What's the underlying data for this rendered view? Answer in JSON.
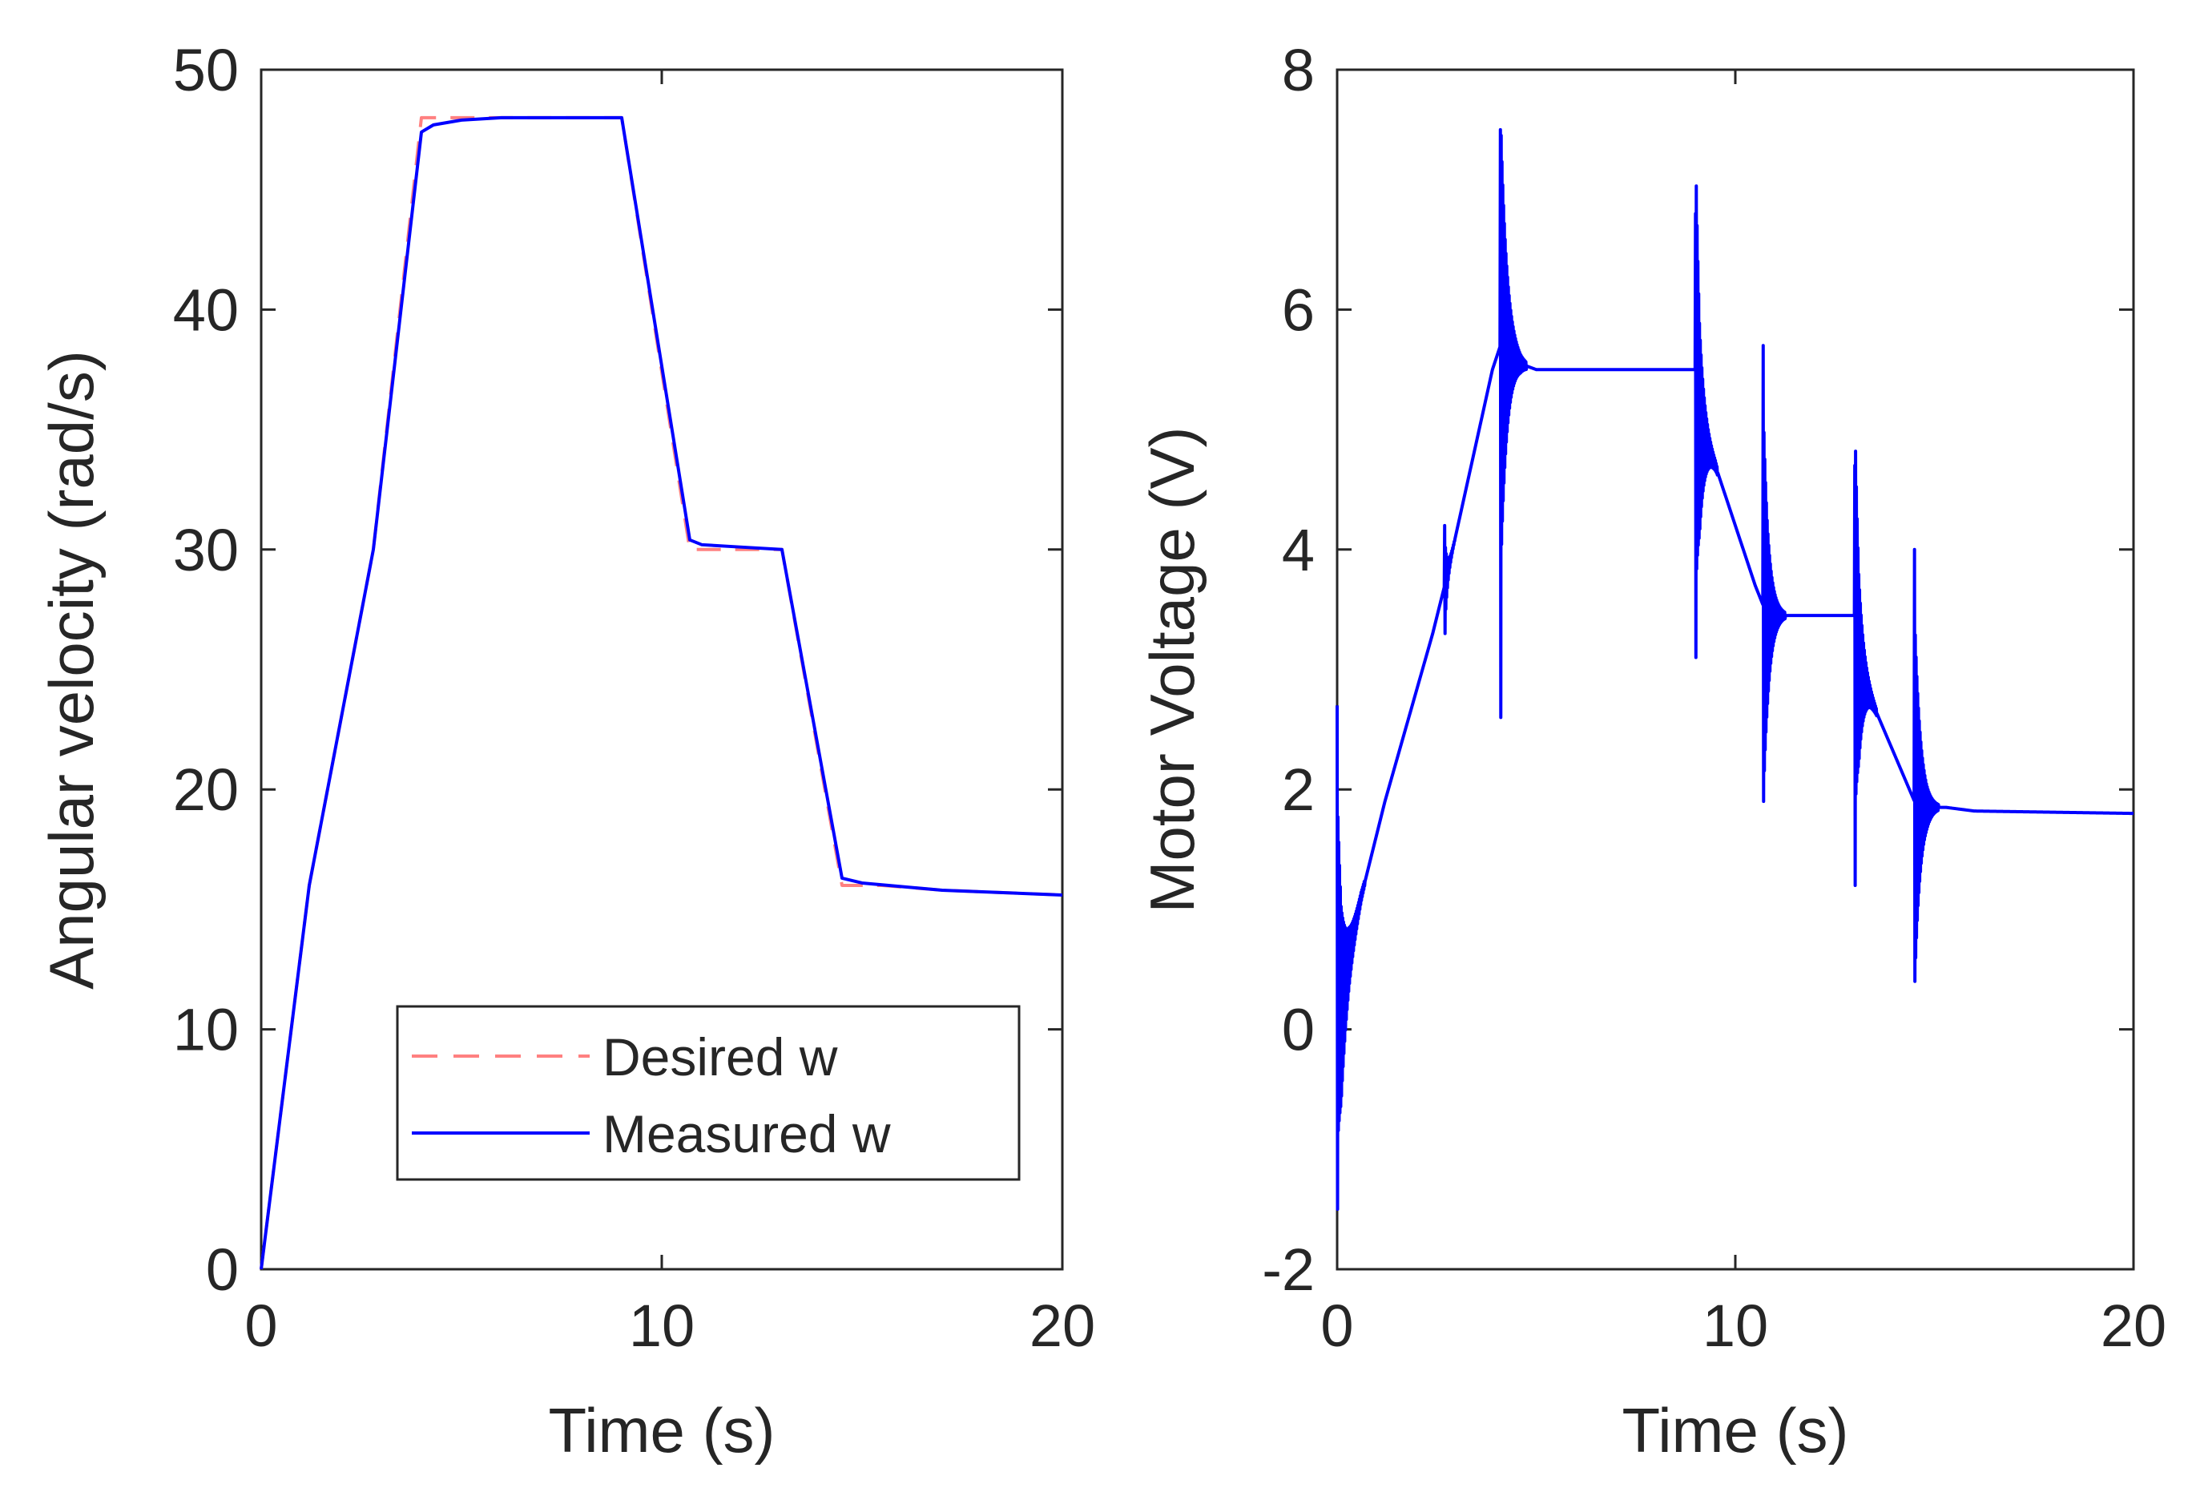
{
  "chart_data": [
    {
      "type": "line",
      "xlabel": "Time (s)",
      "ylabel": "Angular velocity (rad/s)",
      "xlim": [
        0,
        20
      ],
      "ylim": [
        0,
        50
      ],
      "xticks": [
        0,
        10,
        20
      ],
      "yticks": [
        0,
        10,
        20,
        30,
        40,
        50
      ],
      "xtick_labels": [
        "0",
        "10",
        "20"
      ],
      "ytick_labels": [
        "0",
        "10",
        "20",
        "30",
        "40",
        "50"
      ],
      "grid": false,
      "legend_position": "bottom-right",
      "series": [
        {
          "name": "Desired w",
          "style": "dashed",
          "color": "#ff8080",
          "x": [
            0,
            1.2,
            2.8,
            4.0,
            5.0,
            9.0,
            10.7,
            11.5,
            13.0,
            14.5,
            15.5,
            17.0,
            20.0
          ],
          "y": [
            0,
            16,
            30,
            48,
            48,
            48,
            30,
            30,
            30,
            16,
            16,
            15.8,
            15.6
          ]
        },
        {
          "name": "Measured w",
          "style": "solid",
          "color": "#0000ff",
          "x": [
            0,
            1.2,
            2.8,
            4.0,
            4.3,
            5.0,
            6.0,
            7.0,
            9.0,
            10.7,
            11.0,
            12.0,
            13.0,
            14.5,
            15.0,
            17.0,
            20.0
          ],
          "y": [
            0,
            16,
            30,
            47.4,
            47.7,
            47.9,
            48,
            48,
            48,
            30.4,
            30.2,
            30.1,
            30,
            16.3,
            16.1,
            15.8,
            15.6
          ]
        }
      ]
    },
    {
      "type": "line",
      "xlabel": "Time (s)",
      "ylabel": "Motor Voltage (V)",
      "xlim": [
        0,
        20
      ],
      "ylim": [
        -2,
        8
      ],
      "xticks": [
        0,
        10,
        20
      ],
      "yticks": [
        -2,
        0,
        2,
        4,
        6,
        8
      ],
      "xtick_labels": [
        "0",
        "10",
        "20"
      ],
      "ytick_labels": [
        "-2",
        "0",
        "2",
        "4",
        "6",
        "8"
      ],
      "grid": false,
      "series": [
        {
          "name": "Motor Voltage",
          "style": "solid",
          "color": "#0000ff",
          "base": {
            "x": [
              0,
              0.1,
              0.3,
              0.6,
              1.2,
              1.8,
              2.4,
              2.7,
              3.3,
              3.9,
              4.1,
              4.6,
              5.0,
              9.0,
              9.1,
              9.5,
              10.5,
              10.8,
              11.4,
              12.0,
              13.0,
              13.1,
              13.6,
              14.5,
              14.8,
              15.3,
              16.0,
              20.0
            ],
            "y": [
              0.5,
              0.2,
              0.6,
              1.1,
              1.9,
              2.6,
              3.3,
              3.7,
              4.6,
              5.5,
              5.7,
              5.55,
              5.5,
              5.5,
              5.0,
              4.7,
              3.7,
              3.45,
              3.45,
              3.45,
              3.45,
              3.0,
              2.6,
              1.9,
              1.85,
              1.85,
              1.82,
              1.8
            ]
          },
          "oscillations": [
            {
              "t0": 0.0,
              "duration": 0.7,
              "amplitude": 1.5,
              "minimum": -1.5,
              "maximum": 2.7
            },
            {
              "t0": 2.7,
              "duration": 0.25,
              "amplitude": 0.4,
              "minimum": 3.3,
              "maximum": 4.2
            },
            {
              "t0": 4.1,
              "duration": 0.65,
              "amplitude": 2.0,
              "minimum": 2.6,
              "maximum": 7.5
            },
            {
              "t0": 9.0,
              "duration": 0.55,
              "amplitude": 1.9,
              "minimum": 3.1,
              "maximum": 6.8
            },
            {
              "t0": 10.7,
              "duration": 0.55,
              "amplitude": 1.7,
              "minimum": 1.9,
              "maximum": 5.7
            },
            {
              "t0": 13.0,
              "duration": 0.55,
              "amplitude": 1.7,
              "minimum": 1.2,
              "maximum": 4.7
            },
            {
              "t0": 14.5,
              "duration": 0.6,
              "amplitude": 1.6,
              "minimum": 0.4,
              "maximum": 4.0
            }
          ]
        }
      ]
    }
  ]
}
